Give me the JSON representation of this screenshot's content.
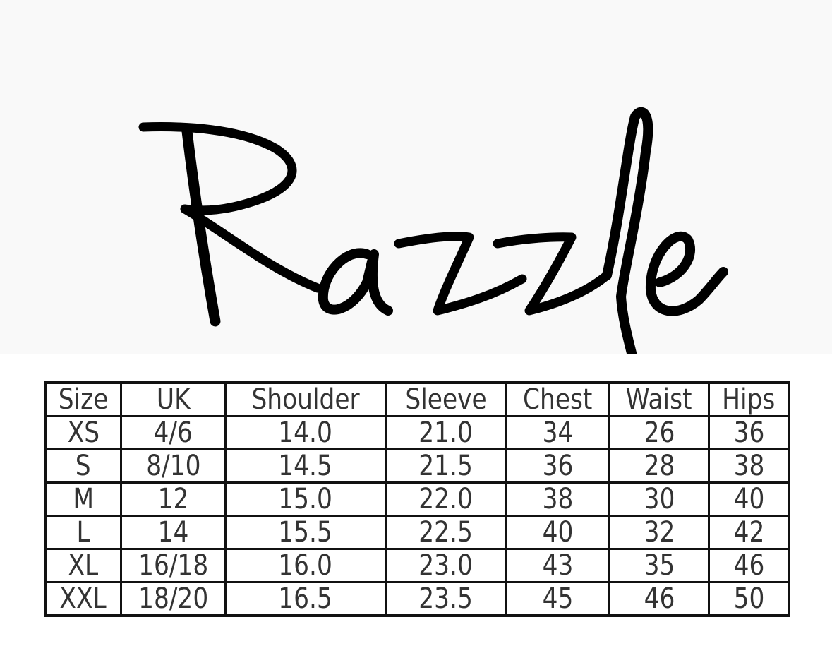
{
  "brand": {
    "logo_text": "Razzle"
  },
  "size_chart": {
    "headers": [
      "Size",
      "UK",
      "Shoulder",
      "Sleeve",
      "Chest",
      "Waist",
      "Hips"
    ],
    "rows": [
      [
        "XS",
        "4/6",
        "14.0",
        "21.0",
        "34",
        "26",
        "36"
      ],
      [
        "S",
        "8/10",
        "14.5",
        "21.5",
        "36",
        "28",
        "38"
      ],
      [
        "M",
        "12",
        "15.0",
        "22.0",
        "38",
        "30",
        "40"
      ],
      [
        "L",
        "14",
        "15.5",
        "22.5",
        "40",
        "32",
        "42"
      ],
      [
        "XL",
        "16/18",
        "16.0",
        "23.0",
        "43",
        "35",
        "46"
      ],
      [
        "XXL",
        "18/20",
        "16.5",
        "23.5",
        "45",
        "46",
        "50"
      ]
    ]
  }
}
